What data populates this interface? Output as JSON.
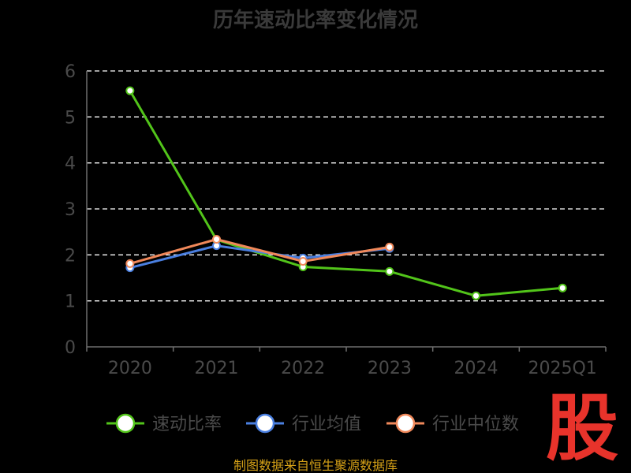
{
  "chart_data": {
    "type": "line",
    "title": "历年速动比率变化情况",
    "categories": [
      "2020",
      "2021",
      "2022",
      "2023",
      "2024",
      "2025Q1"
    ],
    "ylim": [
      0,
      6
    ],
    "yticks": [
      "0",
      "1",
      "2",
      "3",
      "4",
      "5",
      "6"
    ],
    "grid": true,
    "legend_position": "bottom",
    "series": [
      {
        "name": "速动比率",
        "color": "#52c41a",
        "values": [
          5.57,
          2.33,
          1.74,
          1.64,
          1.11,
          1.28
        ]
      },
      {
        "name": "行业均值",
        "color": "#4a7fe0",
        "values": [
          1.72,
          2.2,
          1.93,
          2.14,
          null,
          null
        ]
      },
      {
        "name": "行业中位数",
        "color": "#f0885a",
        "values": [
          1.81,
          2.34,
          1.86,
          2.17,
          null,
          null
        ]
      }
    ],
    "source": "制图数据来自恒生聚源数据库",
    "watermark": "股"
  }
}
